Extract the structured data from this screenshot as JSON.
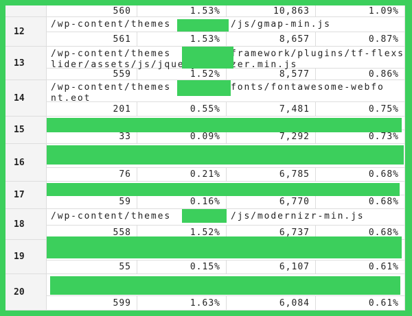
{
  "table": {
    "top_row": [
      "560",
      "1.53%",
      "10,863",
      "1.09%"
    ],
    "rows": [
      {
        "rank": "12",
        "path": [
          [
            "/wp-content/themes",
            "/js/gmap-min.js"
          ]
        ],
        "cells": [
          "561",
          "1.53%",
          "8,657",
          "0.87%"
        ]
      },
      {
        "rank": "13",
        "path": [
          [
            "/wp-content/themes",
            "framework/plugins/tf-flexs"
          ],
          [
            "lider/assets/js/jquery",
            "zer.min.js"
          ]
        ],
        "cells": [
          "559",
          "1.52%",
          "8,577",
          "0.86%"
        ]
      },
      {
        "rank": "14",
        "path": [
          [
            "/wp-content/themes",
            "fonts/fontawesome-webfo"
          ],
          [
            "nt.eot"
          ]
        ],
        "cells": [
          "201",
          "0.55%",
          "7,481",
          "0.75%"
        ]
      },
      {
        "rank": "15",
        "path": [],
        "cells": [
          "33",
          "0.09%",
          "7,292",
          "0.73%"
        ]
      },
      {
        "rank": "16",
        "path": [],
        "cells": [
          "76",
          "0.21%",
          "6,785",
          "0.68%"
        ]
      },
      {
        "rank": "17",
        "path": [],
        "cells": [
          "59",
          "0.16%",
          "6,770",
          "0.68%"
        ]
      },
      {
        "rank": "18",
        "path": [
          [
            "/wp-content/themes",
            "/js/modernizr-min.js"
          ]
        ],
        "cells": [
          "558",
          "1.52%",
          "6,737",
          "0.68%"
        ]
      },
      {
        "rank": "19",
        "path": [],
        "cells": [
          "55",
          "0.15%",
          "6,107",
          "0.61%"
        ]
      },
      {
        "rank": "20",
        "path": [],
        "cells": [
          "599",
          "1.63%",
          "6,084",
          "0.61%"
        ]
      }
    ]
  }
}
